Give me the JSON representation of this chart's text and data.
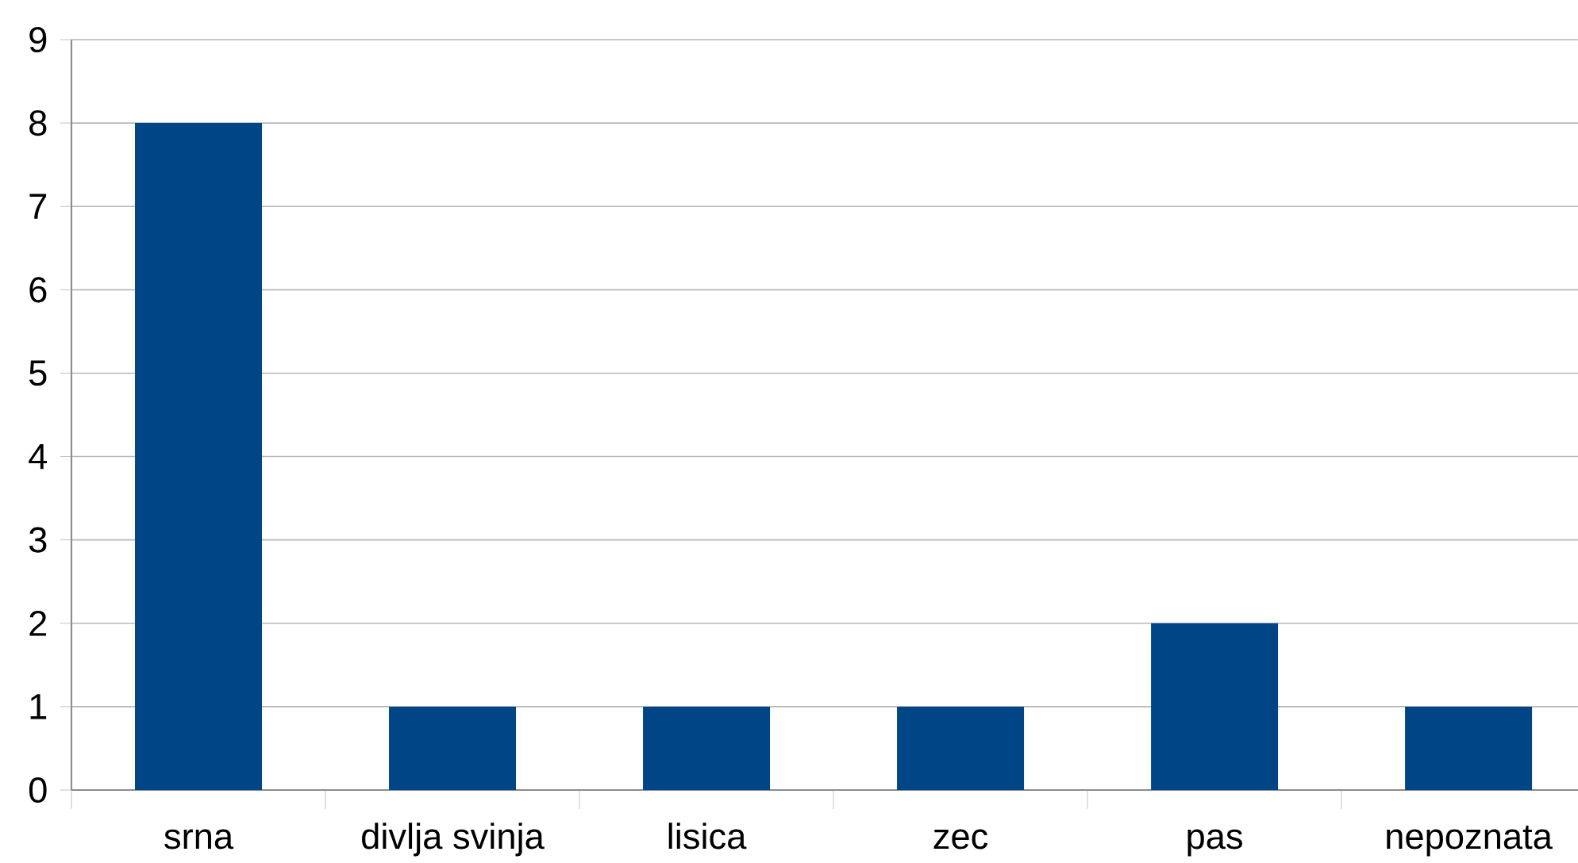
{
  "chart_data": {
    "type": "bar",
    "categories": [
      "srna",
      "divlja svinja",
      "lisica",
      "zec",
      "pas",
      "nepoznata"
    ],
    "values": [
      8,
      1,
      1,
      1,
      2,
      1
    ],
    "color": "#004586",
    "ylim": [
      0,
      9
    ],
    "yticks": [
      0,
      1,
      2,
      3,
      4,
      5,
      6,
      7,
      8,
      9
    ],
    "grid": "y"
  }
}
